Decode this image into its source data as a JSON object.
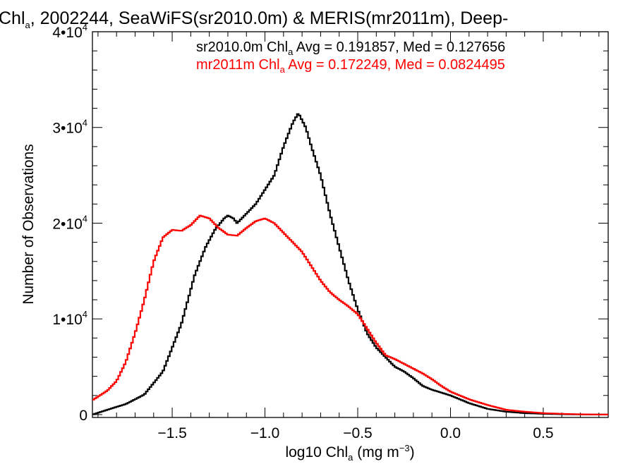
{
  "chart_data": {
    "type": "line",
    "title": {
      "pre": "Chl",
      "sub": "a",
      "post": ", 2002244, SeaWiFS(sr2010.0m) & MERIS(mr2011m), Deep-"
    },
    "xlabel": {
      "pre": "log10 Chl",
      "sub": "a",
      "mid": " (mg m",
      "sup": "−3",
      "post": ")"
    },
    "ylabel": "Number of Observations",
    "xlim": [
      -1.93,
      0.85
    ],
    "ylim": [
      -300,
      40000
    ],
    "x_ticks": [
      {
        "value": -1.5,
        "label": "−1.5"
      },
      {
        "value": -1.0,
        "label": "−1.0"
      },
      {
        "value": -0.5,
        "label": "−0.5"
      },
      {
        "value": 0.0,
        "label": "0.0"
      },
      {
        "value": 0.5,
        "label": "0.5"
      }
    ],
    "y_ticks": [
      {
        "value": 0,
        "mant": "0",
        "exp": ""
      },
      {
        "value": 10000,
        "mant": "1•10",
        "exp": "4"
      },
      {
        "value": 20000,
        "mant": "2•10",
        "exp": "4"
      },
      {
        "value": 30000,
        "mant": "3•10",
        "exp": "4"
      },
      {
        "value": 40000,
        "mant": "4•10",
        "exp": "4"
      }
    ],
    "grid": false,
    "legend_position": "top-right",
    "series": [
      {
        "name": "sr2010.0m",
        "color": "#000000",
        "legend": {
          "pre": "sr2010.0m Chl",
          "sub": "a",
          "post": " Avg = 0.191857, Med = 0.127656"
        },
        "x": [
          -1.93,
          -1.85,
          -1.75,
          -1.65,
          -1.55,
          -1.45,
          -1.38,
          -1.32,
          -1.27,
          -1.22,
          -1.2,
          -1.17,
          -1.15,
          -1.1,
          -1.05,
          -1.0,
          -0.95,
          -0.9,
          -0.85,
          -0.82,
          -0.78,
          -0.75,
          -0.7,
          -0.65,
          -0.6,
          -0.55,
          -0.5,
          -0.45,
          -0.4,
          -0.35,
          -0.3,
          -0.25,
          -0.2,
          -0.15,
          -0.1,
          -0.05,
          0.0,
          0.1,
          0.2,
          0.3,
          0.4,
          0.5,
          0.6,
          0.7,
          0.85
        ],
        "y": [
          0,
          500,
          1100,
          2100,
          4500,
          9500,
          14500,
          17500,
          19300,
          20500,
          20800,
          20500,
          20000,
          21000,
          22000,
          23500,
          25000,
          28000,
          30500,
          31500,
          30000,
          28000,
          25000,
          21000,
          17500,
          14000,
          11000,
          8500,
          7000,
          6000,
          5000,
          4500,
          3800,
          3000,
          2600,
          2300,
          2000,
          1200,
          600,
          300,
          150,
          80,
          40,
          20,
          0
        ]
      },
      {
        "name": "mr2011m",
        "color": "#ff0000",
        "legend": {
          "pre": "mr2011m Chl",
          "sub": "a",
          "post": " Avg = 0.172249, Med = 0.0824495"
        },
        "x": [
          -1.93,
          -1.85,
          -1.8,
          -1.75,
          -1.7,
          -1.65,
          -1.6,
          -1.55,
          -1.5,
          -1.45,
          -1.4,
          -1.35,
          -1.3,
          -1.25,
          -1.2,
          -1.15,
          -1.1,
          -1.05,
          -1.0,
          -0.95,
          -0.9,
          -0.85,
          -0.8,
          -0.75,
          -0.7,
          -0.65,
          -0.6,
          -0.55,
          -0.5,
          -0.45,
          -0.4,
          -0.35,
          -0.3,
          -0.25,
          -0.2,
          -0.15,
          -0.1,
          -0.05,
          0.0,
          0.1,
          0.2,
          0.3,
          0.4,
          0.5,
          0.6,
          0.7,
          0.85
        ],
        "y": [
          1500,
          2500,
          3500,
          5500,
          8500,
          12000,
          16000,
          18500,
          19300,
          19200,
          19800,
          20800,
          20500,
          19500,
          18800,
          18700,
          19500,
          20200,
          20500,
          20000,
          19000,
          18000,
          17000,
          15500,
          14000,
          12800,
          12000,
          11300,
          10500,
          9000,
          7500,
          6200,
          5800,
          5300,
          4800,
          4300,
          3700,
          3000,
          2400,
          1600,
          1000,
          500,
          300,
          150,
          80,
          30,
          0
        ]
      }
    ]
  }
}
